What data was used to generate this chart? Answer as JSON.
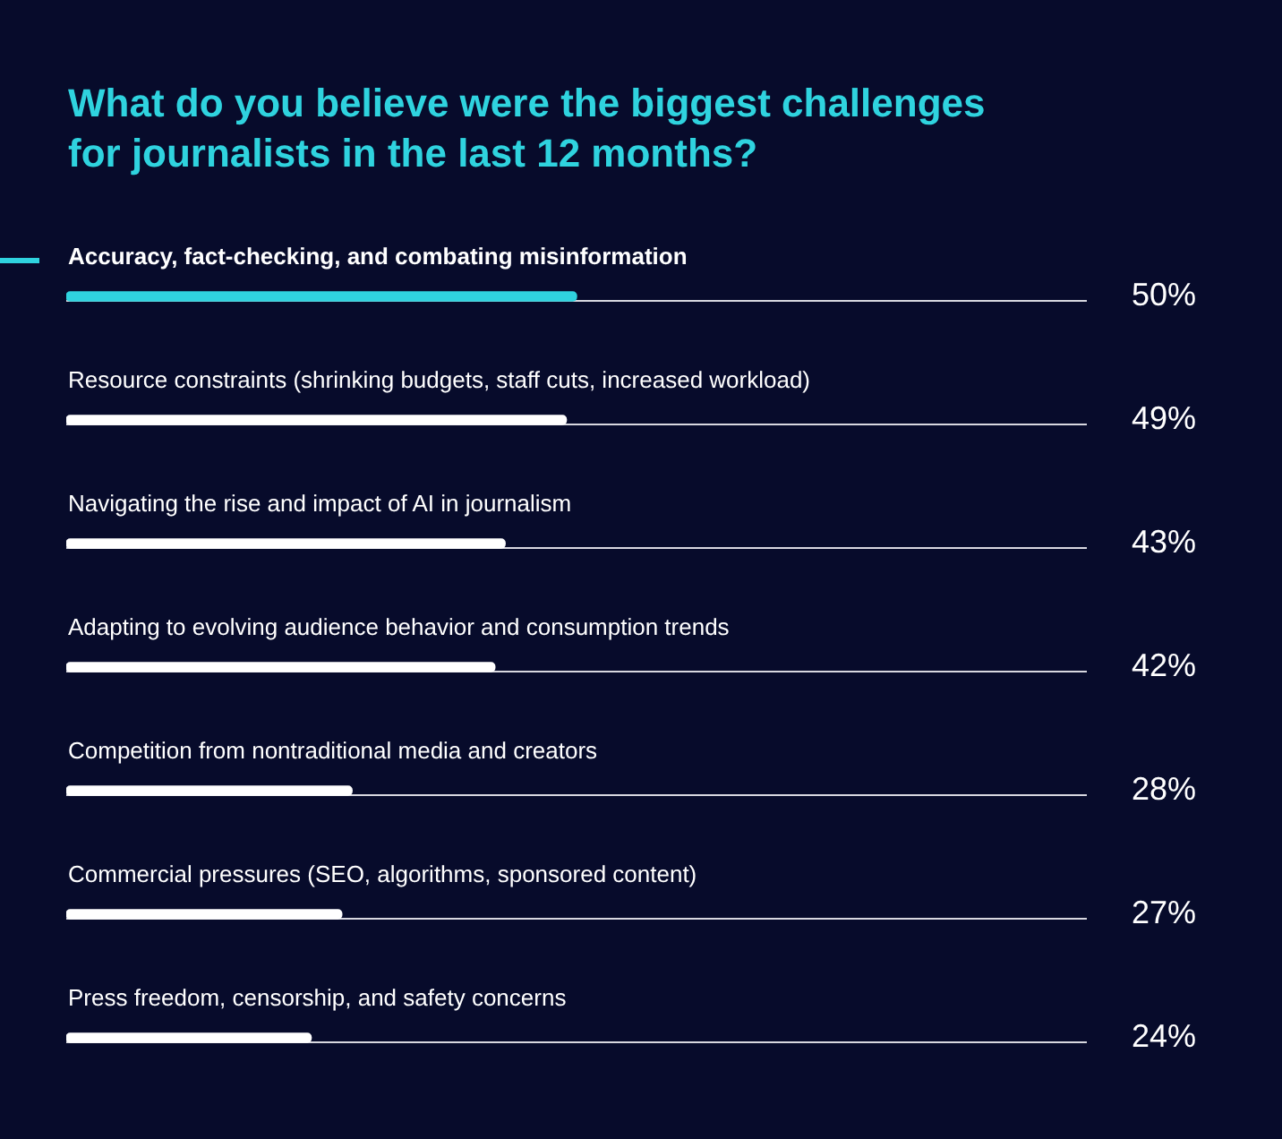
{
  "chart_data": {
    "type": "bar",
    "orientation": "horizontal",
    "title": "What do you believe were the biggest challenges for journalists in the last 12 months?",
    "categories": [
      "Accuracy, fact-checking, and combating misinformation",
      "Resource constraints (shrinking budgets, staff cuts, increased workload)",
      "Navigating the rise and impact of AI in journalism",
      "Adapting to evolving audience behavior and consumption trends",
      "Competition from nontraditional media and creators",
      "Commercial pressures (SEO, algorithms, sponsored content)",
      "Press freedom, censorship, and safety concerns"
    ],
    "values": [
      50,
      49,
      43,
      42,
      28,
      27,
      24
    ],
    "colors": [
      "#2fd3df",
      "#ffffff",
      "#ffffff",
      "#ffffff",
      "#ffffff",
      "#ffffff",
      "#ffffff"
    ],
    "value_labels": [
      "50%",
      "49%",
      "43%",
      "42%",
      "28%",
      "27%",
      "24%"
    ],
    "xlim": [
      0,
      100
    ],
    "legend": false
  }
}
